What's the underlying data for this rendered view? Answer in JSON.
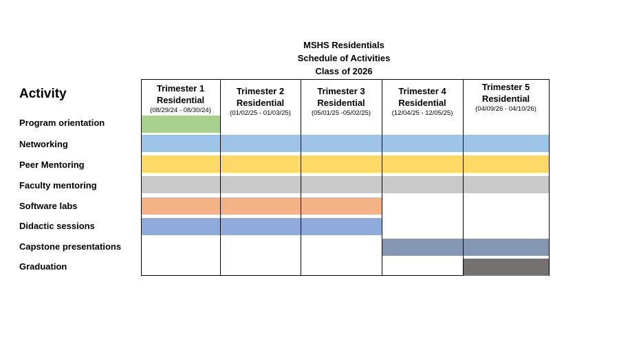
{
  "header": {
    "line1": "MSHS Residentials",
    "line2": "Schedule of Activities",
    "line3": "Class of 2026"
  },
  "activity_heading": "Activity",
  "columns": [
    {
      "title": "Trimester 1",
      "subtitle": "Residential",
      "dates": "(08/29/24 - 08/30/24)"
    },
    {
      "title": "Trimester 2",
      "subtitle": "Residential",
      "dates": "(01/02/25 - 01/03/25)"
    },
    {
      "title": "Trimester 3",
      "subtitle": "Residential",
      "dates": "(05/01/25 -05/02/25)"
    },
    {
      "title": "Trimester 4",
      "subtitle": "Residential",
      "dates": "(12/04/25 - 12/05/25)"
    },
    {
      "title": "Trimester 5",
      "subtitle": "Residential",
      "dates": "(04/09/26 - 04/10/26)"
    }
  ],
  "activities": [
    {
      "label": "Program orientation",
      "color": "#a9d18e",
      "trimesters": [
        1
      ]
    },
    {
      "label": "Networking",
      "color": "#9dc3e6",
      "trimesters": [
        1,
        2,
        3,
        4,
        5
      ]
    },
    {
      "label": "Peer Mentoring",
      "color": "#ffd966",
      "trimesters": [
        1,
        2,
        3,
        4,
        5
      ]
    },
    {
      "label": "Faculty mentoring",
      "color": "#c9c9c9",
      "trimesters": [
        1,
        2,
        3,
        4,
        5
      ]
    },
    {
      "label": "Software labs",
      "color": "#f4b183",
      "trimesters": [
        1,
        2,
        3
      ]
    },
    {
      "label": "Didactic sessions",
      "color": "#8faadc",
      "trimesters": [
        1,
        2,
        3
      ]
    },
    {
      "label": "Capstone presentations",
      "color": "#8497b0",
      "trimesters": [
        4,
        5
      ]
    },
    {
      "label": "Graduation",
      "color": "#767171",
      "trimesters": [
        5
      ]
    }
  ]
}
